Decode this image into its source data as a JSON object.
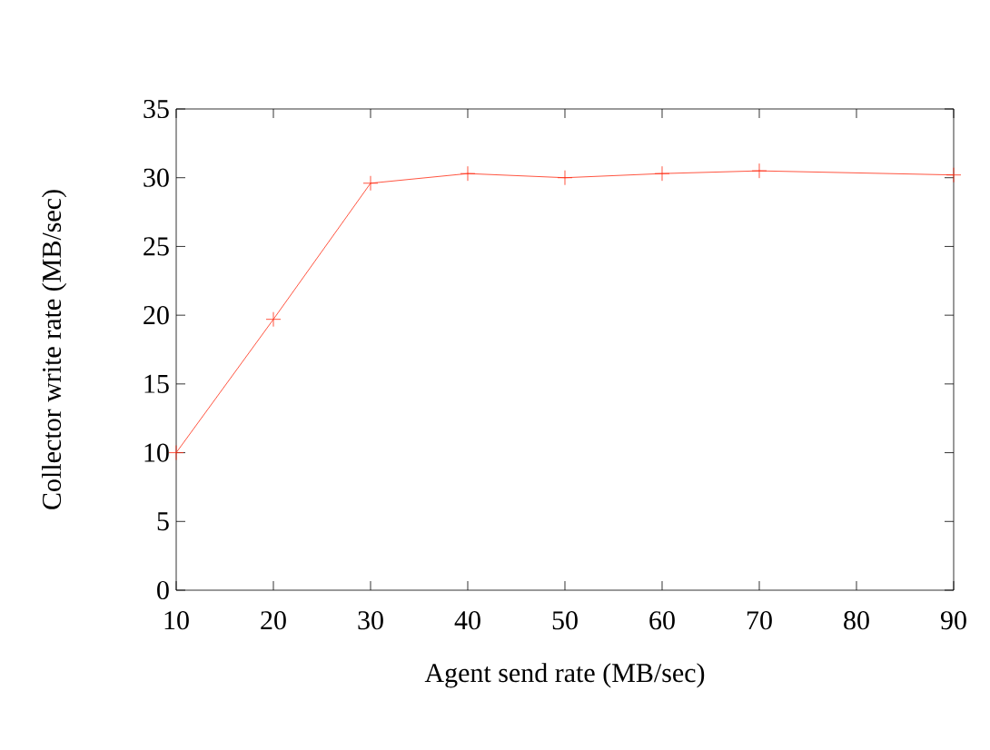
{
  "chart_data": {
    "type": "line",
    "xlabel": "Agent send rate (MB/sec)",
    "ylabel": "Collector write rate (MB/sec)",
    "x": [
      10,
      20,
      30,
      40,
      50,
      60,
      70,
      90
    ],
    "series": [
      {
        "color": "#ff2a10",
        "values": [
          10,
          19.7,
          29.6,
          30.3,
          30.0,
          30.3,
          30.5,
          30.2
        ]
      }
    ],
    "xlim": [
      10,
      90
    ],
    "ylim": [
      0,
      35
    ],
    "xticks": [
      10,
      20,
      30,
      40,
      50,
      60,
      70,
      80,
      90
    ],
    "yticks": [
      0,
      5,
      10,
      15,
      20,
      25,
      30,
      35
    ],
    "marker": "cross",
    "line_style": "solid",
    "grid": false
  }
}
